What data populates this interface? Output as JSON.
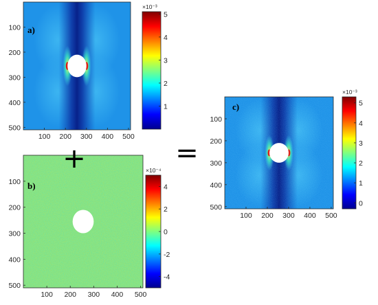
{
  "chart_data": [
    {
      "type": "heatmap",
      "panel_label": "a)",
      "x_ticks": [
        100,
        200,
        300,
        400,
        500
      ],
      "y_ticks": [
        100,
        200,
        300,
        400,
        500
      ],
      "xlim": [
        0,
        510
      ],
      "ylim": [
        0,
        510
      ],
      "circle": {
        "cx": 255,
        "cy": 255,
        "r": 45
      },
      "colorbar": {
        "ticks": [
          "1",
          "2",
          "3",
          "4",
          "5"
        ],
        "tick_values": [
          1,
          2,
          3,
          4,
          5
        ],
        "min": 0,
        "max": 5.1,
        "exponent": "×10⁻³"
      },
      "pattern": "smooth"
    },
    {
      "type": "heatmap",
      "panel_label": "b)",
      "x_ticks": [
        100,
        200,
        300,
        400,
        500
      ],
      "y_ticks": [
        100,
        200,
        300,
        400,
        500
      ],
      "xlim": [
        0,
        510
      ],
      "ylim": [
        0,
        510
      ],
      "circle": {
        "cx": 255,
        "cy": 255,
        "r": 45
      },
      "colorbar": {
        "ticks": [
          "4",
          "2",
          "0",
          "-2",
          "-4"
        ],
        "tick_values": [
          4,
          2,
          0,
          -2,
          -4
        ],
        "min": -5,
        "max": 5,
        "exponent": "×10⁻⁴"
      },
      "pattern": "noise"
    },
    {
      "type": "heatmap",
      "panel_label": "c)",
      "x_ticks": [
        100,
        200,
        300,
        400,
        500
      ],
      "y_ticks": [
        100,
        200,
        300,
        400,
        500
      ],
      "xlim": [
        0,
        510
      ],
      "ylim": [
        0,
        510
      ],
      "circle": {
        "cx": 255,
        "cy": 255,
        "r": 45
      },
      "colorbar": {
        "ticks": [
          "5",
          "4",
          "3",
          "2",
          "1",
          "0"
        ],
        "tick_values": [
          5,
          4,
          3,
          2,
          1,
          0
        ],
        "min": -0.3,
        "max": 5.3,
        "exponent": "×10⁻³"
      },
      "pattern": "noisy-smooth"
    }
  ],
  "operators": {
    "plus": "+",
    "equals": "="
  }
}
